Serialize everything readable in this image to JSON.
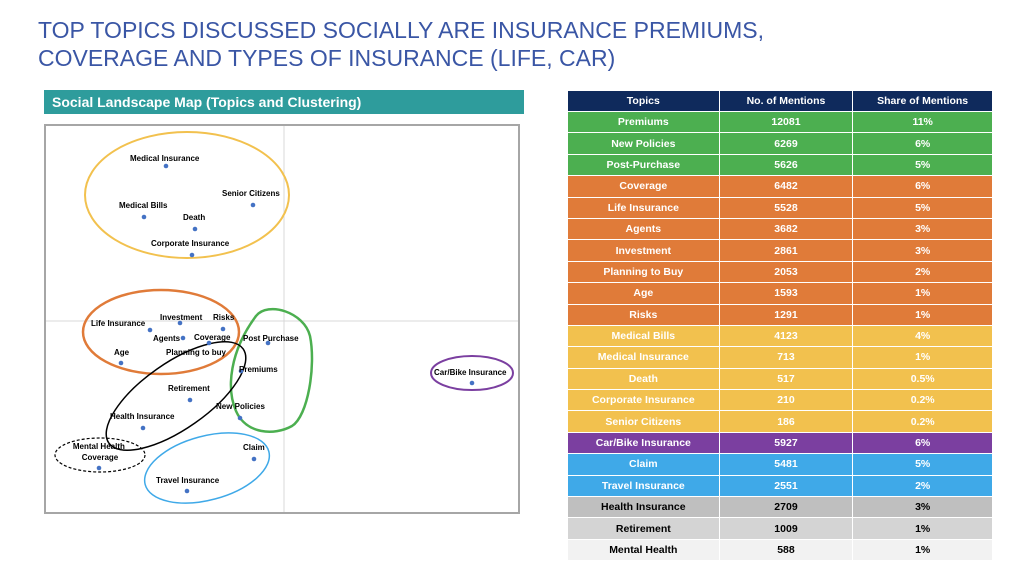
{
  "title_line1": "TOP TOPICS DISCUSSED SOCIALLY ARE INSURANCE PREMIUMS,",
  "title_line2": "COVERAGE AND TYPES OF INSURANCE (LIFE, CAR)",
  "map": {
    "header": "Social Landscape Map (Topics and Clustering)",
    "colors": {
      "points": "#4472c4",
      "axis": "#d9d9d9"
    }
  },
  "chart_data": {
    "type": "table",
    "columns": [
      "Topics",
      "No. of Mentions",
      "Share of Mentions"
    ],
    "rows": [
      {
        "topic": "Premiums",
        "mentions": "12081",
        "share": "11%",
        "color": "#4caf50"
      },
      {
        "topic": "New Policies",
        "mentions": "6269",
        "share": "6%",
        "color": "#4caf50"
      },
      {
        "topic": "Post-Purchase",
        "mentions": "5626",
        "share": "5%",
        "color": "#4caf50"
      },
      {
        "topic": "Coverage",
        "mentions": "6482",
        "share": "6%",
        "color": "#e07b39"
      },
      {
        "topic": "Life Insurance",
        "mentions": "5528",
        "share": "5%",
        "color": "#e07b39"
      },
      {
        "topic": "Agents",
        "mentions": "3682",
        "share": "3%",
        "color": "#e07b39"
      },
      {
        "topic": "Investment",
        "mentions": "2861",
        "share": "3%",
        "color": "#e07b39"
      },
      {
        "topic": "Planning to Buy",
        "mentions": "2053",
        "share": "2%",
        "color": "#e07b39"
      },
      {
        "topic": "Age",
        "mentions": "1593",
        "share": "1%",
        "color": "#e07b39"
      },
      {
        "topic": "Risks",
        "mentions": "1291",
        "share": "1%",
        "color": "#e07b39"
      },
      {
        "topic": "Medical Bills",
        "mentions": "4123",
        "share": "4%",
        "color": "#f2c14e"
      },
      {
        "topic": "Medical Insurance",
        "mentions": "713",
        "share": "1%",
        "color": "#f2c14e"
      },
      {
        "topic": "Death",
        "mentions": "517",
        "share": "0.5%",
        "color": "#f2c14e"
      },
      {
        "topic": "Corporate Insurance",
        "mentions": "210",
        "share": "0.2%",
        "color": "#f2c14e"
      },
      {
        "topic": "Senior Citizens",
        "mentions": "186",
        "share": "0.2%",
        "color": "#f2c14e"
      },
      {
        "topic": "Car/Bike Insurance",
        "mentions": "5927",
        "share": "6%",
        "color": "#7b3fa0"
      },
      {
        "topic": "Claim",
        "mentions": "5481",
        "share": "5%",
        "color": "#3fa9e8"
      },
      {
        "topic": "Travel Insurance",
        "mentions": "2551",
        "share": "2%",
        "color": "#3fa9e8"
      },
      {
        "topic": "Health Insurance",
        "mentions": "2709",
        "share": "3%",
        "color": "#bfbfbf",
        "text_color": "#000000"
      },
      {
        "topic": "Retirement",
        "mentions": "1009",
        "share": "1%",
        "color": "#d4d4d4",
        "text_color": "#000000"
      },
      {
        "topic": "Mental Health",
        "mentions": "588",
        "share": "1%",
        "color": "#f2f2f2",
        "text_color": "#000000"
      }
    ],
    "map_points": [
      {
        "name": "medical-insurance",
        "label": "Medical Insurance"
      },
      {
        "name": "senior-citizens",
        "label": "Senior Citizens"
      },
      {
        "name": "medical-bills",
        "label": "Medical Bills"
      },
      {
        "name": "death",
        "label": "Death"
      },
      {
        "name": "corporate-insurance",
        "label": "Corporate Insurance"
      },
      {
        "name": "life-insurance",
        "label": "Life Insurance"
      },
      {
        "name": "investment",
        "label": "Investment"
      },
      {
        "name": "risks",
        "label": "Risks"
      },
      {
        "name": "agents",
        "label": "Agents"
      },
      {
        "name": "coverage",
        "label": "Coverage"
      },
      {
        "name": "planning-to-buy",
        "label": "Planning to buy"
      },
      {
        "name": "age",
        "label": "Age"
      },
      {
        "name": "post-purchase",
        "label": "Post Purchase"
      },
      {
        "name": "premiums",
        "label": "Premiums"
      },
      {
        "name": "new-policies",
        "label": "New Policies"
      },
      {
        "name": "retirement",
        "label": "Retirement"
      },
      {
        "name": "health-insurance",
        "label": "Health Insurance"
      },
      {
        "name": "car-bike-insurance",
        "label": "Car/Bike Insurance"
      },
      {
        "name": "claim",
        "label": "Claim"
      },
      {
        "name": "travel-insurance",
        "label": "Travel Insurance"
      },
      {
        "name": "mental-health-coverage",
        "label": "Mental Health Coverage"
      }
    ],
    "clusters": [
      {
        "name": "health-cluster",
        "color": "#f2c14e"
      },
      {
        "name": "life-cluster",
        "color": "#e07b39"
      },
      {
        "name": "purchase-cluster",
        "color": "#4caf50"
      },
      {
        "name": "retirement-cluster",
        "color": "#000000"
      },
      {
        "name": "car-cluster",
        "color": "#7b3fa0"
      },
      {
        "name": "travel-cluster",
        "color": "#3fa9e8"
      },
      {
        "name": "mental-health-cluster",
        "color": "#000000"
      }
    ]
  }
}
